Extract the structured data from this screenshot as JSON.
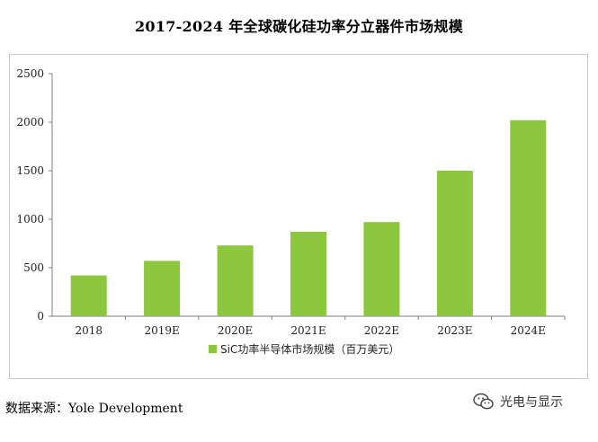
{
  "chart_data": {
    "type": "bar",
    "title": "2017-2024 年全球碳化硅功率分立器件市场规模",
    "categories": [
      "2018",
      "2019E",
      "2020E",
      "2021E",
      "2022E",
      "2023E",
      "2024E"
    ],
    "series": [
      {
        "name": "SiC功率半导体市场规模（百万美元）",
        "values": [
          420,
          570,
          730,
          870,
          970,
          1500,
          2020
        ]
      }
    ],
    "ylim": [
      0,
      2500
    ],
    "yticks": [
      0,
      500,
      1000,
      1500,
      2000,
      2500
    ],
    "grid": false,
    "legend": "bottom-center",
    "bar_color": "#8dc63f"
  },
  "source": {
    "text": "数据来源：Yole Development"
  },
  "watermark": {
    "text": "光电与显示",
    "icon": "wechat-icon"
  }
}
